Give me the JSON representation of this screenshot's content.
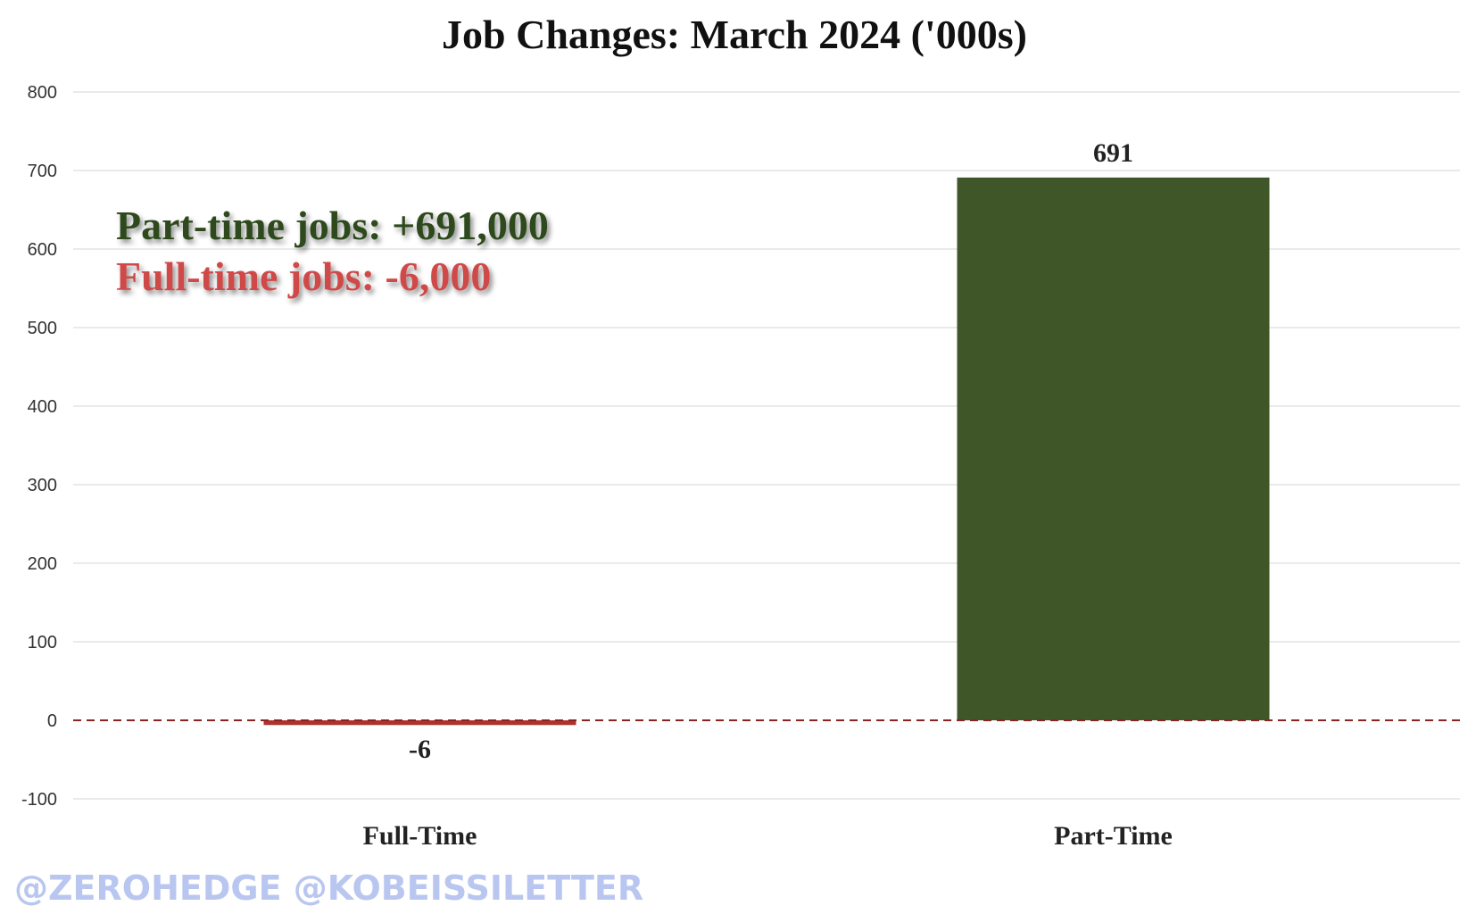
{
  "chart_data": {
    "type": "bar",
    "title": "Job Changes: March 2024 ('000s)",
    "categories": [
      "Full-Time",
      "Part-Time"
    ],
    "values": [
      -6,
      691
    ],
    "value_labels": [
      "-6",
      "691"
    ],
    "bar_colors": [
      "#b0302c",
      "#3f5629"
    ],
    "ylim": [
      -100,
      800
    ],
    "yticks": [
      800,
      700,
      600,
      500,
      400,
      300,
      200,
      100,
      0,
      -100
    ],
    "grid": true,
    "zero_line": {
      "style": "dashed",
      "color": "#8b2323"
    },
    "annotations": [
      {
        "text": "Part-time jobs: +691,000",
        "color": "#2f4a1f"
      },
      {
        "text": "Full-time jobs: -6,000",
        "color": "#d04a4a"
      }
    ]
  },
  "watermark": "@ZEROHEDGE @KOBEISSILETTER"
}
